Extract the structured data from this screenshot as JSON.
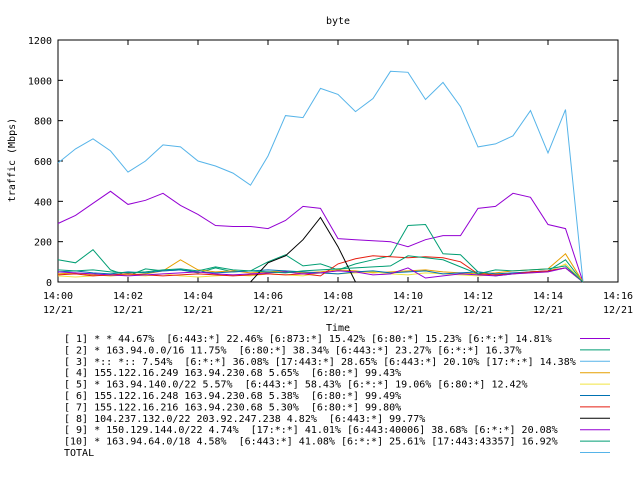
{
  "chart_data": {
    "type": "line",
    "title": "byte",
    "xlabel": "Time",
    "ylabel": "traffic (Mbps)",
    "ylim": [
      0,
      1200
    ],
    "xlim": [
      0,
      16
    ],
    "grid": false,
    "legend_position": "bottom",
    "yticks": [
      "0",
      "200",
      "400",
      "600",
      "800",
      "1000",
      "1200"
    ],
    "xticks": [
      {
        "v": 0,
        "l1": "14:00",
        "l2": "12/21"
      },
      {
        "v": 2,
        "l1": "14:02",
        "l2": "12/21"
      },
      {
        "v": 4,
        "l1": "14:04",
        "l2": "12/21"
      },
      {
        "v": 6,
        "l1": "14:06",
        "l2": "12/21"
      },
      {
        "v": 8,
        "l1": "14:08",
        "l2": "12/21"
      },
      {
        "v": 10,
        "l1": "14:10",
        "l2": "12/21"
      },
      {
        "v": 12,
        "l1": "14:12",
        "l2": "12/21"
      },
      {
        "v": 14,
        "l1": "14:14",
        "l2": "12/21"
      },
      {
        "v": 16,
        "l1": "14:16",
        "l2": "12/21"
      }
    ],
    "x": [
      0,
      0.5,
      1,
      1.5,
      2,
      2.5,
      3,
      3.5,
      4,
      4.5,
      5,
      5.5,
      6,
      6.5,
      7,
      7.5,
      8,
      8.5,
      9,
      9.5,
      10,
      10.5,
      11,
      11.5,
      12,
      12.5,
      13,
      13.5,
      14,
      14.5,
      15
    ],
    "series": [
      {
        "name": "[ 1] * * 44.67%  [6:443:*] 22.46% [6:873:*] 15.42% [6:80:*] 15.23% [6:*:*] 14.81%",
        "color": "#9400d3",
        "values": [
          290,
          330,
          390,
          450,
          385,
          405,
          440,
          380,
          335,
          280,
          275,
          275,
          265,
          305,
          375,
          365,
          215,
          210,
          205,
          200,
          175,
          210,
          230,
          230,
          365,
          375,
          440,
          420,
          285,
          265,
          0
        ]
      },
      {
        "name": "[ 2] * 163.94.0.0/16 11.75%  [6:80:*] 38.34% [6:443:*] 23.27% [6:*:*] 16.37%",
        "color": "#009e73",
        "values": [
          110,
          95,
          160,
          60,
          30,
          65,
          55,
          60,
          45,
          70,
          50,
          55,
          100,
          135,
          80,
          90,
          60,
          90,
          110,
          130,
          280,
          285,
          140,
          135,
          50,
          30,
          40,
          50,
          55,
          110,
          0
        ]
      },
      {
        "name": "[ 3] *:: *:: 7.54%  [6:*:*] 36.08% [17:443:*] 28.65% [6:443:*] 20.10% [17:*:*] 14.38%",
        "color": "#56b4e9",
        "values": [
          590,
          660,
          710,
          650,
          545,
          600,
          680,
          670,
          600,
          575,
          540,
          480,
          625,
          825,
          815,
          960,
          930,
          845,
          910,
          1045,
          1040,
          905,
          990,
          870,
          670,
          685,
          725,
          850,
          640,
          855,
          0
        ]
      },
      {
        "name": "[ 4] 155.122.16.249 163.94.230.68 5.65%  [6:80:*] 99.43%",
        "color": "#e69f00",
        "values": [
          40,
          45,
          35,
          30,
          35,
          40,
          55,
          110,
          60,
          50,
          55,
          45,
          50,
          55,
          45,
          50,
          60,
          55,
          45,
          50,
          55,
          60,
          50,
          45,
          40,
          45,
          55,
          60,
          65,
          140,
          0
        ]
      },
      {
        "name": "[ 5] * 163.94.140.0/22 5.57%  [6:443:*] 58.43% [6:*:*] 19.06% [6:80:*] 12.42%",
        "color": "#f0e442",
        "values": [
          30,
          25,
          30,
          40,
          35,
          30,
          40,
          30,
          25,
          30,
          35,
          30,
          40,
          35,
          30,
          45,
          40,
          45,
          50,
          40,
          35,
          45,
          40,
          35,
          30,
          35,
          40,
          45,
          50,
          90,
          0
        ]
      },
      {
        "name": "[ 6] 155.122.16.248 163.94.230.68 5.38%  [6:80:*] 99.49%",
        "color": "#0072b2",
        "values": [
          50,
          55,
          45,
          40,
          50,
          45,
          55,
          60,
          50,
          45,
          50,
          55,
          60,
          55,
          50,
          45,
          40,
          50,
          55,
          45,
          50,
          55,
          40,
          45,
          50,
          40,
          45,
          50,
          55,
          70,
          0
        ]
      },
      {
        "name": "[ 7] 155.122.16.216 163.94.230.68 5.30%  [6:80:*] 99.80%",
        "color": "#e51e10",
        "values": [
          35,
          40,
          30,
          35,
          40,
          35,
          30,
          35,
          40,
          35,
          30,
          35,
          40,
          35,
          40,
          30,
          90,
          115,
          130,
          125,
          120,
          125,
          120,
          100,
          40,
          35,
          40,
          50,
          55,
          70,
          0
        ]
      },
      {
        "name": "[ 8] 104.237.132.0/22 203.92.247.238 4.82%  [6:443:*] 99.77%",
        "color": "#000000",
        "values": [
          0,
          0,
          0,
          0,
          0,
          0,
          0,
          0,
          0,
          0,
          0,
          0,
          95,
          130,
          210,
          320,
          175,
          0,
          0,
          0,
          0,
          0,
          0,
          0,
          0,
          0,
          0,
          0,
          0,
          0,
          0
        ]
      },
      {
        "name": "[ 9] * 150.129.144.0/22 4.74%  [17:*:*] 41.01% [6:443:40006] 38.68% [6:*:*] 20.08%",
        "color": "#9400d3",
        "values": [
          50,
          45,
          40,
          35,
          30,
          35,
          40,
          45,
          50,
          40,
          35,
          40,
          45,
          50,
          40,
          45,
          55,
          50,
          35,
          40,
          70,
          20,
          30,
          40,
          35,
          30,
          40,
          45,
          50,
          70,
          0
        ]
      },
      {
        "name": "[10] * 163.94.64.0/18 4.58%  [6:443:*] 41.08% [6:*:*] 25.61% [17:443:43357] 16.92%",
        "color": "#009e73",
        "values": [
          60,
          55,
          60,
          50,
          45,
          50,
          60,
          65,
          55,
          75,
          60,
          55,
          50,
          45,
          55,
          60,
          65,
          70,
          75,
          80,
          130,
          120,
          110,
          75,
          40,
          60,
          55,
          60,
          65,
          80,
          0
        ]
      }
    ],
    "total": {
      "name": "TOTAL",
      "color": "#56b4e9"
    }
  }
}
